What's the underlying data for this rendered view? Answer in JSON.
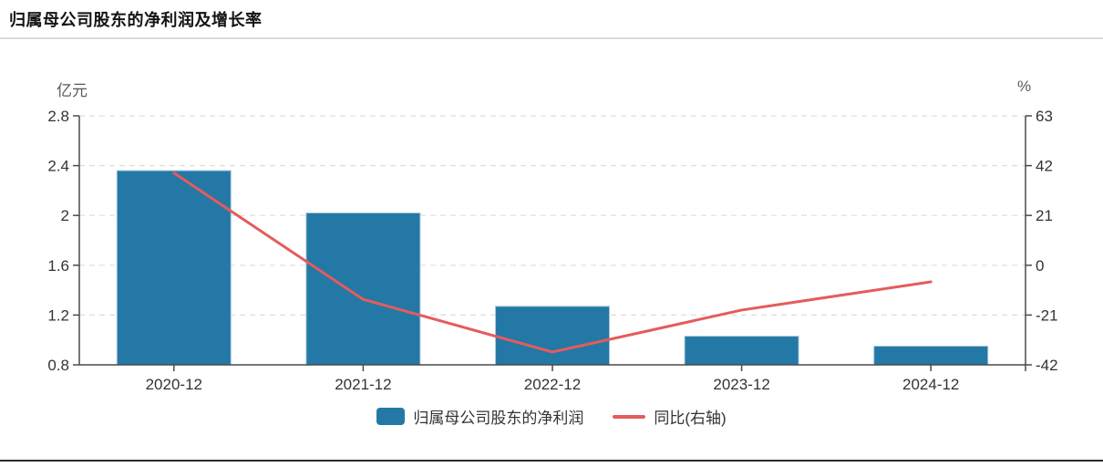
{
  "chart_data": {
    "type": "bar",
    "subtype": "bar-line-combo",
    "title": "归属母公司股东的净利润及增长率",
    "categories": [
      "2020-12",
      "2021-12",
      "2022-12",
      "2023-12",
      "2024-12"
    ],
    "series": [
      {
        "name": "归属母公司股东的净利润",
        "type": "bar",
        "yaxis": "left",
        "color": "#2478a6",
        "border_color": "#a5c8dc",
        "values": [
          2.36,
          2.02,
          1.27,
          1.03,
          0.95
        ]
      },
      {
        "name": "同比(右轴)",
        "type": "line",
        "yaxis": "right",
        "color": "#e45c5c",
        "values": [
          38.9,
          -14.4,
          -36.6,
          -18.9,
          -7.0
        ]
      }
    ],
    "left_axis": {
      "label": "亿元",
      "min": 0.8,
      "max": 2.8,
      "ticks": [
        0.8,
        1.2,
        1.6,
        2,
        2.4,
        2.8
      ]
    },
    "right_axis": {
      "label": "%",
      "min": -42,
      "max": 63,
      "ticks": [
        -42,
        -21,
        0,
        21,
        42,
        63
      ]
    },
    "grid": {
      "horizontal_dashed": true,
      "color": "#dddddd"
    },
    "axis_color": "#4a4a4a",
    "legend_position": "bottom-center"
  }
}
